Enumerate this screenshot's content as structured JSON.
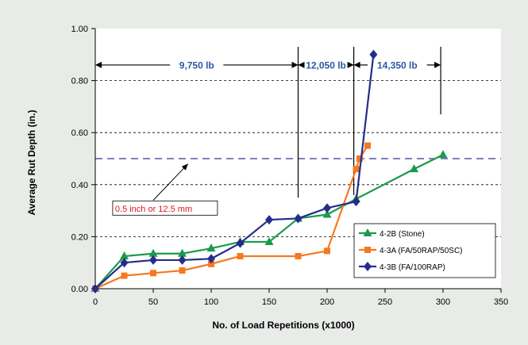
{
  "chart_data": {
    "type": "line",
    "title": "",
    "xlabel": "No. of Load Repetitions (x1000)",
    "ylabel": "Average Rut Depth (in.)",
    "xlim": [
      0,
      350
    ],
    "ylim": [
      0,
      1
    ],
    "xticks": [
      0,
      50,
      100,
      150,
      200,
      250,
      300,
      350
    ],
    "xtick_labels": [
      "0",
      "50",
      "100",
      "150",
      "200",
      "250",
      "300",
      "350"
    ],
    "yticks": [
      0,
      0.2,
      0.4,
      0.6,
      0.8,
      1.0
    ],
    "ytick_labels": [
      "0.00",
      "0.20",
      "0.40",
      "0.60",
      "0.80",
      "1.00"
    ],
    "grid": "horizontal dashed at 0.20, 0.40, 0.60, 0.80",
    "legend_position": "bottom-right",
    "series": [
      {
        "name": "4-2B (Stone)",
        "color": "#1a9a4a",
        "marker": "triangle",
        "x": [
          0,
          25,
          50,
          75,
          100,
          125,
          150,
          175,
          200,
          225,
          275,
          300
        ],
        "y": [
          0.0,
          0.125,
          0.135,
          0.135,
          0.155,
          0.18,
          0.18,
          0.27,
          0.285,
          0.345,
          0.46,
          0.515
        ]
      },
      {
        "name": "4-3A (FA/50RAP/50SC)",
        "color": "#f47920",
        "marker": "square",
        "x": [
          0,
          25,
          50,
          75,
          100,
          125,
          175,
          200,
          225,
          228,
          235
        ],
        "y": [
          0.0,
          0.05,
          0.06,
          0.07,
          0.095,
          0.125,
          0.125,
          0.145,
          0.46,
          0.5,
          0.55
        ]
      },
      {
        "name": "4-3B (FA/100RAP)",
        "color": "#262c8a",
        "marker": "diamond",
        "x": [
          0,
          25,
          50,
          75,
          100,
          125,
          150,
          175,
          200,
          225,
          240
        ],
        "y": [
          0.0,
          0.1,
          0.11,
          0.11,
          0.115,
          0.175,
          0.265,
          0.27,
          0.31,
          0.335,
          0.9
        ]
      }
    ],
    "reference_line": {
      "y": 0.5,
      "color": "#7f7fbf",
      "style": "dashed"
    },
    "load_regions": [
      {
        "label": "9,750 lb",
        "x_start": 0,
        "x_end": 175,
        "y": 0.86
      },
      {
        "label": "12,050 lb",
        "x_start": 175,
        "x_end": 223,
        "y": 0.86
      },
      {
        "label": "14,350 lb",
        "x_start": 223,
        "x_end": 298,
        "y": 0.86
      }
    ],
    "load_dividers": [
      {
        "x": 175,
        "y_bottom": 0.35,
        "y_top": 0.93
      },
      {
        "x": 223,
        "y_bottom": 0.36,
        "y_top": 0.93
      },
      {
        "x": 298,
        "y_bottom": 0.67,
        "y_top": 0.93
      }
    ],
    "annotation": {
      "text": "0.5 inch or 12.5 mm",
      "color": "#e0141e",
      "box_x": 15,
      "box_y": 0.31,
      "arrow_from": [
        50,
        0.34
      ],
      "arrow_to": [
        80,
        0.48
      ]
    }
  }
}
